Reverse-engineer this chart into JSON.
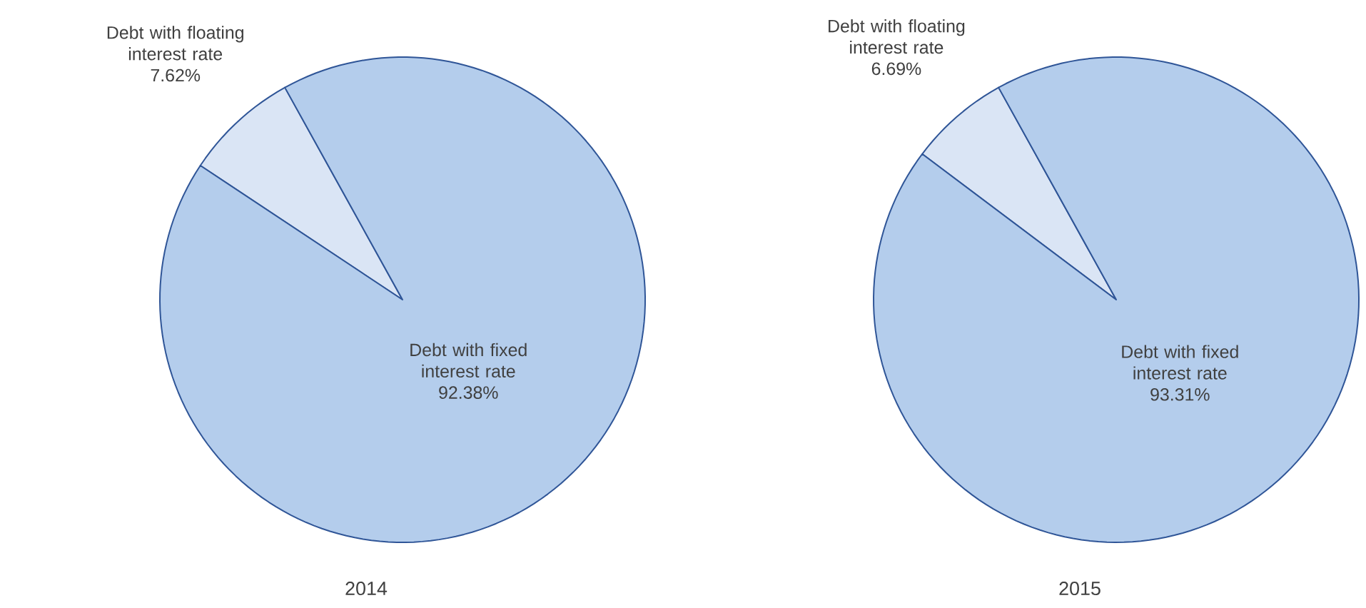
{
  "chart_data": [
    {
      "type": "pie",
      "title": "2014",
      "categories": [
        "Debt with floating interest rate",
        "Debt with fixed interest rate"
      ],
      "values": [
        7.62,
        92.38
      ],
      "value_labels": [
        "7.62%",
        "92.38%"
      ],
      "colors": [
        "#dae5f5",
        "#b4cdec"
      ]
    },
    {
      "type": "pie",
      "title": "2015",
      "categories": [
        "Debt with floating interest rate",
        "Debt with fixed interest rate"
      ],
      "values": [
        6.69,
        93.31
      ],
      "value_labels": [
        "6.69%",
        "93.31%"
      ],
      "colors": [
        "#dae5f5",
        "#b4cdec"
      ]
    }
  ]
}
